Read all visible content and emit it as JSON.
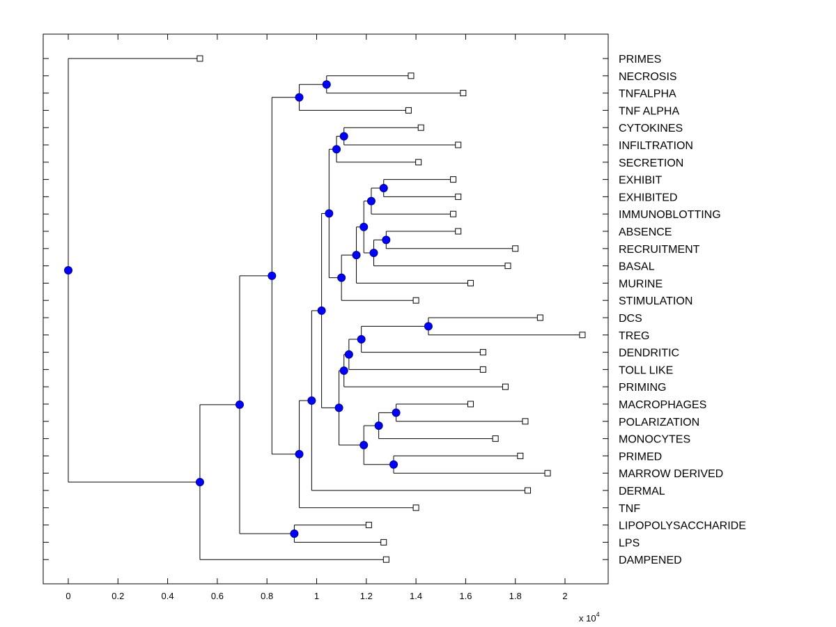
{
  "chart_data": {
    "type": "dendrogram",
    "title": "",
    "xlabel": "",
    "ylabel": "",
    "x_multiplier_label": "x 10",
    "x_multiplier_exponent": "4",
    "xlim": [
      -0.1,
      2.17
    ],
    "x_ticks": [
      0,
      0.2,
      0.4,
      0.6,
      0.8,
      1,
      1.2,
      1.4,
      1.6,
      1.8,
      2
    ],
    "x_tick_labels": [
      "0",
      "0.2",
      "0.4",
      "0.6",
      "0.8",
      "1",
      "1.2",
      "1.4",
      "1.6",
      "1.8",
      "2"
    ],
    "leaf_labels_position": "right",
    "grid": false,
    "colors": {
      "node_fill": "#0000ff",
      "node_stroke": "#000080",
      "line": "#000000",
      "leaf_fill": "#ffffff"
    },
    "leaves": [
      "PRIMES",
      "NECROSIS",
      "TNFALPHA",
      "TNF ALPHA",
      "CYTOKINES",
      "INFILTRATION",
      "SECRETION",
      "EXHIBIT",
      "EXHIBITED",
      "IMMUNOBLOTTING",
      "ABSENCE",
      "RECRUITMENT",
      "BASAL",
      "MURINE",
      "STIMULATION",
      "DCS",
      "TREG",
      "DENDRITIC",
      "TOLL LIKE",
      "PRIMING",
      "MACROPHAGES",
      "POLARIZATION",
      "MONOCYTES",
      "PRIMED",
      "MARROW DERIVED",
      "DERMAL",
      "TNF",
      "LIPOPOLYSACCHARIDE",
      "LPS",
      "DAMPENED"
    ],
    "tree": {
      "x": 0,
      "children": [
        {
          "leaf": "PRIMES",
          "x": 0.53
        },
        {
          "x": 0.53,
          "children": [
            {
              "x": 0.69,
              "children": [
                {
                  "x": 0.82,
                  "children": [
                    {
                      "x": 0.93,
                      "children": [
                        {
                          "x": 1.04,
                          "children": [
                            {
                              "leaf": "NECROSIS",
                              "x": 1.38
                            },
                            {
                              "leaf": "TNFALPHA",
                              "x": 1.59
                            }
                          ]
                        },
                        {
                          "leaf": "TNF ALPHA",
                          "x": 1.37
                        }
                      ]
                    },
                    {
                      "x": 0.93,
                      "children": [
                        {
                          "x": 0.98,
                          "children": [
                            {
                              "x": 1.02,
                              "children": [
                                {
                                  "x": 1.05,
                                  "children": [
                                    {
                                      "x": 1.08,
                                      "children": [
                                        {
                                          "x": 1.11,
                                          "children": [
                                            {
                                              "leaf": "CYTOKINES",
                                              "x": 1.42
                                            },
                                            {
                                              "leaf": "INFILTRATION",
                                              "x": 1.57
                                            }
                                          ]
                                        },
                                        {
                                          "leaf": "SECRETION",
                                          "x": 1.41
                                        }
                                      ]
                                    },
                                    {
                                      "x": 1.1,
                                      "children": [
                                        {
                                          "x": 1.16,
                                          "children": [
                                            {
                                              "x": 1.19,
                                              "children": [
                                                {
                                                  "x": 1.22,
                                                  "children": [
                                                    {
                                                      "x": 1.27,
                                                      "children": [
                                                        {
                                                          "leaf": "EXHIBIT",
                                                          "x": 1.55
                                                        },
                                                        {
                                                          "leaf": "EXHIBITED",
                                                          "x": 1.57
                                                        }
                                                      ]
                                                    },
                                                    {
                                                      "leaf": "IMMUNOBLOTTING",
                                                      "x": 1.55
                                                    }
                                                  ]
                                                },
                                                {
                                                  "x": 1.23,
                                                  "children": [
                                                    {
                                                      "x": 1.28,
                                                      "children": [
                                                        {
                                                          "leaf": "ABSENCE",
                                                          "x": 1.57
                                                        },
                                                        {
                                                          "leaf": "RECRUITMENT",
                                                          "x": 1.8
                                                        }
                                                      ]
                                                    },
                                                    {
                                                      "leaf": "BASAL",
                                                      "x": 1.77
                                                    }
                                                  ]
                                                }
                                              ]
                                            },
                                            {
                                              "leaf": "MURINE",
                                              "x": 1.62
                                            }
                                          ]
                                        },
                                        {
                                          "leaf": "STIMULATION",
                                          "x": 1.4
                                        }
                                      ]
                                    }
                                  ]
                                },
                                {
                                  "x": 1.09,
                                  "children": [
                                    {
                                      "x": 1.11,
                                      "children": [
                                        {
                                          "x": 1.13,
                                          "children": [
                                            {
                                              "x": 1.18,
                                              "children": [
                                                {
                                                  "x": 1.45,
                                                  "children": [
                                                    {
                                                      "leaf": "DCS",
                                                      "x": 1.9
                                                    },
                                                    {
                                                      "leaf": "TREG",
                                                      "x": 2.07
                                                    }
                                                  ]
                                                },
                                                {
                                                  "leaf": "DENDRITIC",
                                                  "x": 1.67
                                                }
                                              ]
                                            },
                                            {
                                              "leaf": "TOLL LIKE",
                                              "x": 1.67
                                            }
                                          ]
                                        },
                                        {
                                          "leaf": "PRIMING",
                                          "x": 1.76
                                        }
                                      ]
                                    },
                                    {
                                      "x": 1.19,
                                      "children": [
                                        {
                                          "x": 1.25,
                                          "children": [
                                            {
                                              "x": 1.32,
                                              "children": [
                                                {
                                                  "leaf": "MACROPHAGES",
                                                  "x": 1.62
                                                },
                                                {
                                                  "leaf": "POLARIZATION",
                                                  "x": 1.84
                                                }
                                              ]
                                            },
                                            {
                                              "leaf": "MONOCYTES",
                                              "x": 1.72
                                            }
                                          ]
                                        },
                                        {
                                          "x": 1.31,
                                          "children": [
                                            {
                                              "leaf": "PRIMED",
                                              "x": 1.82
                                            },
                                            {
                                              "leaf": "MARROW DERIVED",
                                              "x": 1.93
                                            }
                                          ]
                                        }
                                      ]
                                    }
                                  ]
                                }
                              ]
                            },
                            {
                              "leaf": "DERMAL",
                              "x": 1.85
                            }
                          ]
                        },
                        {
                          "leaf": "TNF",
                          "x": 1.4
                        }
                      ]
                    }
                  ]
                },
                {
                  "x": 0.91,
                  "children": [
                    {
                      "leaf": "LIPOPOLYSACCHARIDE",
                      "x": 1.21
                    },
                    {
                      "leaf": "LPS",
                      "x": 1.27
                    }
                  ]
                }
              ]
            },
            {
              "leaf": "DAMPENED",
              "x": 1.28
            }
          ]
        }
      ]
    }
  }
}
